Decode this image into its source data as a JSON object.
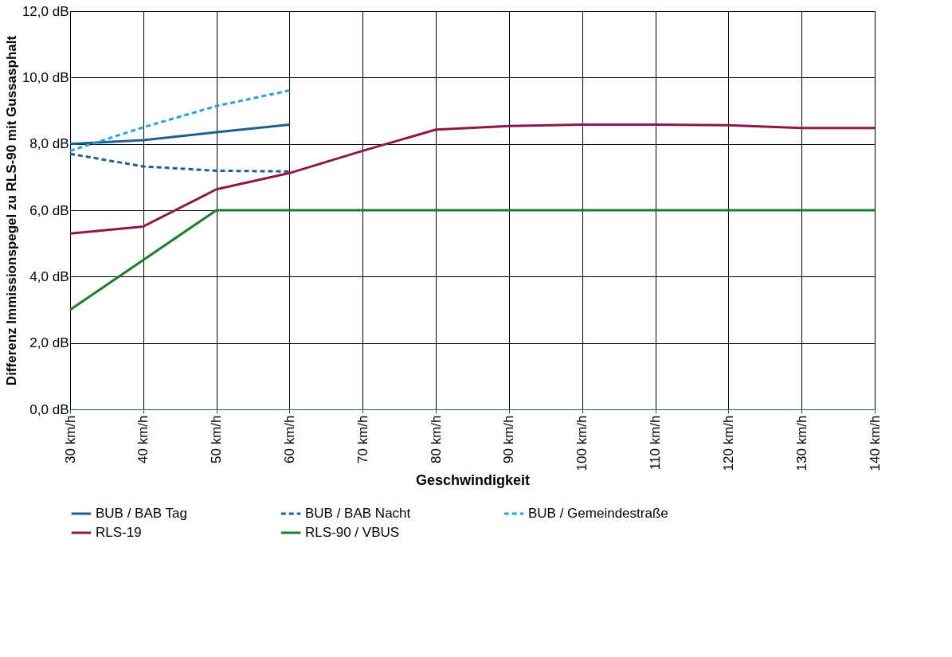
{
  "chart_data": {
    "type": "line",
    "xlabel": "Geschwindigkeit",
    "ylabel": "Differenz Immissionspegel zu RLS-90 mit Gussasphalt",
    "categories": [
      "30 km/h",
      "40 km/h",
      "50 km/h",
      "60 km/h",
      "70 km/h",
      "80 km/h",
      "90 km/h",
      "100 km/h",
      "110 km/h",
      "120 km/h",
      "130 km/h",
      "140 km/h"
    ],
    "series": [
      {
        "name": "BUB / BAB Tag",
        "color": "#1f5f8b",
        "line_style": "solid",
        "values": [
          8.0,
          8.11,
          8.35,
          8.58,
          null,
          null,
          null,
          null,
          null,
          null,
          null,
          null
        ]
      },
      {
        "name": "BUB / BAB Nacht",
        "color": "#1f5f8b",
        "line_style": "dashed",
        "values": [
          7.7,
          7.32,
          7.19,
          7.17,
          null,
          null,
          null,
          null,
          null,
          null,
          null,
          null
        ]
      },
      {
        "name": "BUB / Gemeindestraße",
        "color": "#2e9fd8",
        "line_style": "dashed",
        "values": [
          7.79,
          8.5,
          9.14,
          9.61,
          null,
          null,
          null,
          null,
          null,
          null,
          null,
          null
        ]
      },
      {
        "name": "RLS-19",
        "color": "#8b1a4a",
        "line_style": "solid",
        "values": [
          5.3,
          5.51,
          6.63,
          7.12,
          7.79,
          8.43,
          8.54,
          8.58,
          8.58,
          8.56,
          8.48,
          8.48
        ]
      },
      {
        "name": "RLS-90 / VBUS",
        "color": "#1e7b2e",
        "line_style": "solid",
        "values": [
          3.0,
          4.5,
          6.0,
          6.0,
          6.0,
          6.0,
          6.0,
          6.0,
          6.0,
          6.0,
          6.0,
          6.0
        ]
      }
    ],
    "ylim": [
      0,
      12
    ],
    "yticks": [
      {
        "value": 0,
        "label": "0,0 dB"
      },
      {
        "value": 2,
        "label": "2,0 dB"
      },
      {
        "value": 4,
        "label": "4,0 dB"
      },
      {
        "value": 6,
        "label": "6,0 dB"
      },
      {
        "value": 8,
        "label": "8,0 dB"
      },
      {
        "value": 10,
        "label": "10,0 dB"
      },
      {
        "value": 12,
        "label": "12,0 dB"
      }
    ],
    "grid": true,
    "legend": "bottom"
  }
}
